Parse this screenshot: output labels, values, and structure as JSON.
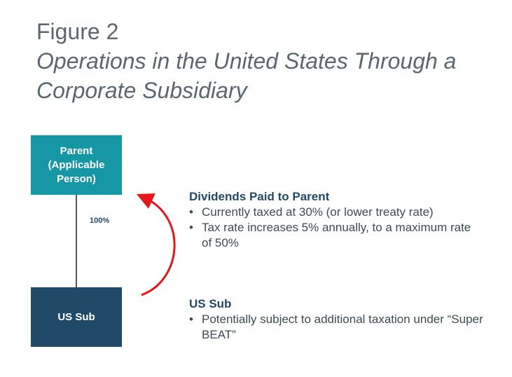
{
  "figure": {
    "label": "Figure 2",
    "title": "Operations in the United States Through a Corporate Subsidiary"
  },
  "diagram": {
    "parent_label": "Parent\n(Applicable\nPerson)",
    "sub_label": "US Sub",
    "ownership_label": "100%",
    "colors": {
      "parent_box": "#1697a6",
      "sub_box": "#204a68",
      "arrow": "#e8161b",
      "heading": "#204a68",
      "title": "#5b6770"
    }
  },
  "dividends": {
    "heading": "Dividends Paid to Parent",
    "bullets": [
      "Currently taxed at 30% (or lower treaty rate)",
      "Tax rate increases 5% annually, to a maximum rate of 50%"
    ]
  },
  "us_sub": {
    "heading": "US Sub",
    "bullets": [
      "Potentially subject to additional taxation under “Super BEAT”"
    ]
  }
}
